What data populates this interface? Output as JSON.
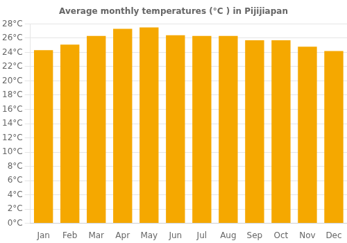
{
  "chart_data": {
    "type": "bar",
    "title": "Average monthly temperatures (°C ) in Pijijiapan",
    "categories": [
      "Jan",
      "Feb",
      "Mar",
      "Apr",
      "May",
      "Jun",
      "Jul",
      "Aug",
      "Sep",
      "Oct",
      "Nov",
      "Dec"
    ],
    "values": [
      24.3,
      25.1,
      26.3,
      27.3,
      27.5,
      26.4,
      26.3,
      26.3,
      25.7,
      25.7,
      24.8,
      24.2
    ],
    "color": "#F5A800",
    "ylim": [
      0,
      28
    ],
    "yticks": [
      {
        "value": 0,
        "label": "0°C"
      },
      {
        "value": 2,
        "label": "2°C"
      },
      {
        "value": 4,
        "label": "4°C"
      },
      {
        "value": 6,
        "label": "6°C"
      },
      {
        "value": 8,
        "label": "8°C"
      },
      {
        "value": 10,
        "label": "10°C"
      },
      {
        "value": 12,
        "label": "12°C"
      },
      {
        "value": 14,
        "label": "14°C"
      },
      {
        "value": 16,
        "label": "16°C"
      },
      {
        "value": 18,
        "label": "18°C"
      },
      {
        "value": 20,
        "label": "20°C"
      },
      {
        "value": 22,
        "label": "22°C"
      },
      {
        "value": 24,
        "label": "24°C"
      },
      {
        "value": 26,
        "label": "26°C"
      },
      {
        "value": 28,
        "label": "28°C"
      }
    ],
    "grid": true
  }
}
